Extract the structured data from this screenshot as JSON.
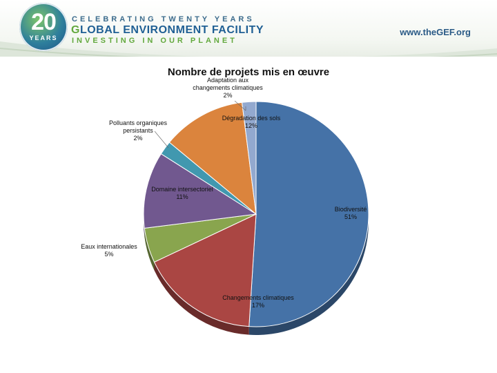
{
  "header": {
    "logo_number": "20",
    "logo_years": "YEARS",
    "tagline_top": "CELEBRATING TWENTY YEARS",
    "org_name_lead": "G",
    "org_name_rest": "LOBAL ENVIRONMENT FACILITY",
    "tagline_bottom": "INVESTING IN OUR PLANET",
    "website": "www.theGEF.org"
  },
  "chart_data": {
    "type": "pie",
    "title": "Nombre de projets mis en œuvre",
    "slices": [
      {
        "name": "Biodiversité",
        "value": 51,
        "label_pct": "51%",
        "color": "#4572a7"
      },
      {
        "name": "Changements climatiques",
        "value": 17,
        "label_pct": "17%",
        "color": "#aa4643"
      },
      {
        "name": "Eaux internationales",
        "value": 5,
        "label_pct": "5%",
        "color": "#89a54e"
      },
      {
        "name": "Domaine intersectoriel",
        "value": 11,
        "label_pct": "11%",
        "color": "#71588f"
      },
      {
        "name": "Polluants organiques persistants",
        "value": 2,
        "label_pct": "2%",
        "color": "#4198af"
      },
      {
        "name": "Dégradation des sols",
        "value": 12,
        "label_pct": "12%",
        "color": "#db843d"
      },
      {
        "name": "Adaptation aux changements climatiques",
        "value": 2,
        "label_pct": "2%",
        "color": "#93a9cf"
      }
    ]
  }
}
